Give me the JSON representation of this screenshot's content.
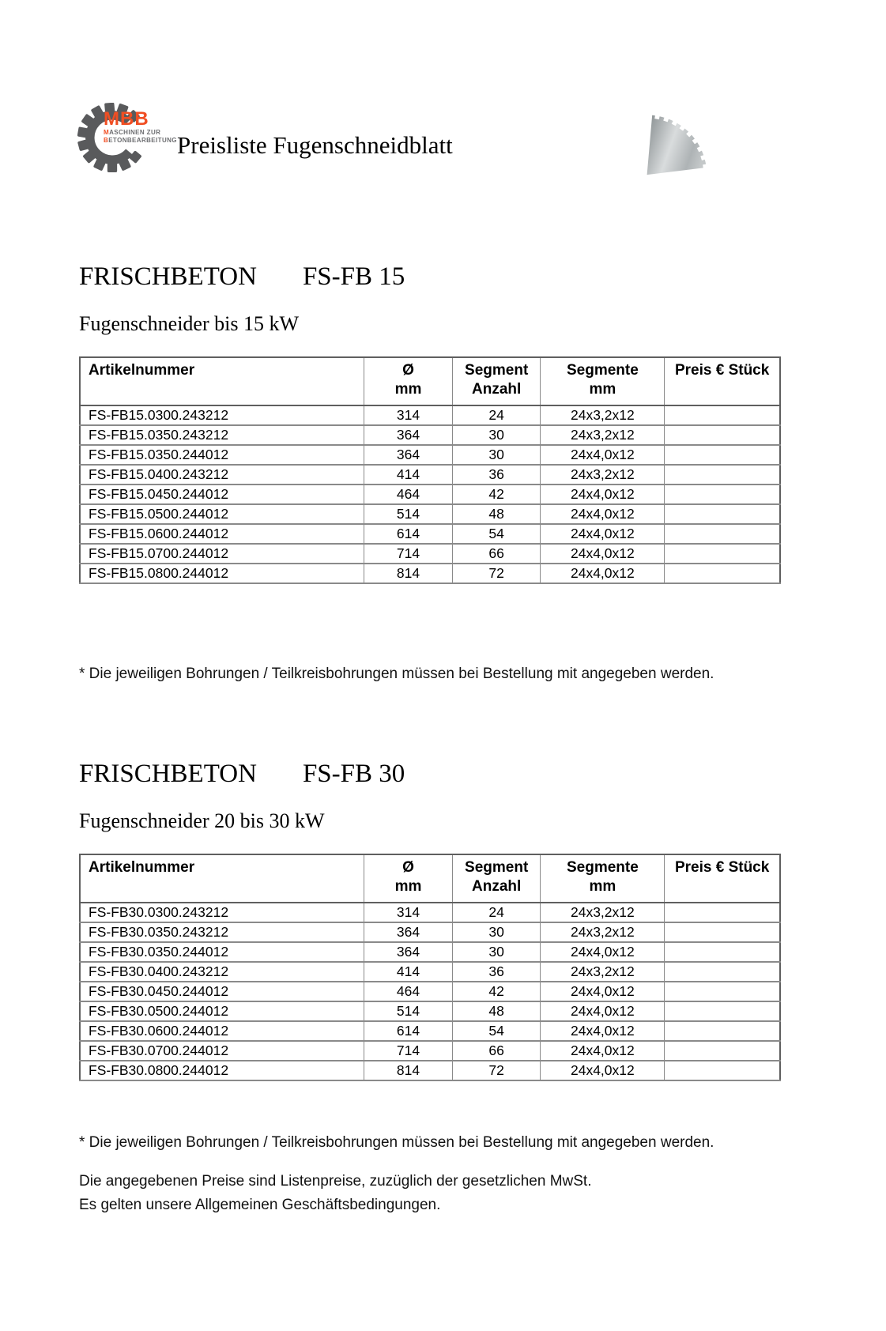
{
  "header": {
    "logo": {
      "brand": "MBB",
      "tagline_line1": "MASCHINEN ZUR",
      "tagline_line2": "BETONBEARBEITUNG"
    },
    "title": "Preisliste Fugenschneidblatt",
    "blade_image": "saw-blade-quarter-photo"
  },
  "sections": [
    {
      "heading_main": "FRISCHBETON",
      "heading_model": "FS-FB 15",
      "subheading": "Fugenschneider bis 15 kW",
      "table": {
        "headers": [
          {
            "line1": "Artikelnummer",
            "line2": ""
          },
          {
            "line1": "Ø",
            "line2": "mm"
          },
          {
            "line1": "Segment",
            "line2": "Anzahl"
          },
          {
            "line1": "Segmente",
            "line2": "mm"
          },
          {
            "line1": "Preis € Stück",
            "line2": ""
          }
        ],
        "rows": [
          [
            "FS-FB15.0300.243212",
            "314",
            "24",
            "24x3,2x12",
            ""
          ],
          [
            "FS-FB15.0350.243212",
            "364",
            "30",
            "24x3,2x12",
            ""
          ],
          [
            "FS-FB15.0350.244012",
            "364",
            "30",
            "24x4,0x12",
            ""
          ],
          [
            "FS-FB15.0400.243212",
            "414",
            "36",
            "24x3,2x12",
            ""
          ],
          [
            "FS-FB15.0450.244012",
            "464",
            "42",
            "24x4,0x12",
            ""
          ],
          [
            "FS-FB15.0500.244012",
            "514",
            "48",
            "24x4,0x12",
            ""
          ],
          [
            "FS-FB15.0600.244012",
            "614",
            "54",
            "24x4,0x12",
            ""
          ],
          [
            "FS-FB15.0700.244012",
            "714",
            "66",
            "24x4,0x12",
            ""
          ],
          [
            "FS-FB15.0800.244012",
            "814",
            "72",
            "24x4,0x12",
            ""
          ]
        ]
      },
      "footnote": "* Die jeweiligen Bohrungen / Teilkreisbohrungen müssen bei Bestellung mit angegeben werden."
    },
    {
      "heading_main": "FRISCHBETON",
      "heading_model": "FS-FB 30",
      "subheading": "Fugenschneider 20 bis 30 kW",
      "table": {
        "headers": [
          {
            "line1": "Artikelnummer",
            "line2": ""
          },
          {
            "line1": "Ø",
            "line2": "mm"
          },
          {
            "line1": "Segment",
            "line2": "Anzahl"
          },
          {
            "line1": "Segmente",
            "line2": "mm"
          },
          {
            "line1": "Preis € Stück",
            "line2": ""
          }
        ],
        "rows": [
          [
            "FS-FB30.0300.243212",
            "314",
            "24",
            "24x3,2x12",
            ""
          ],
          [
            "FS-FB30.0350.243212",
            "364",
            "30",
            "24x3,2x12",
            ""
          ],
          [
            "FS-FB30.0350.244012",
            "364",
            "30",
            "24x4,0x12",
            ""
          ],
          [
            "FS-FB30.0400.243212",
            "414",
            "36",
            "24x3,2x12",
            ""
          ],
          [
            "FS-FB30.0450.244012",
            "464",
            "42",
            "24x4,0x12",
            ""
          ],
          [
            "FS-FB30.0500.244012",
            "514",
            "48",
            "24x4,0x12",
            ""
          ],
          [
            "FS-FB30.0600.244012",
            "614",
            "54",
            "24x4,0x12",
            ""
          ],
          [
            "FS-FB30.0700.244012",
            "714",
            "66",
            "24x4,0x12",
            ""
          ],
          [
            "FS-FB30.0800.244012",
            "814",
            "72",
            "24x4,0x12",
            ""
          ]
        ]
      },
      "footnote": "* Die jeweiligen Bohrungen / Teilkreisbohrungen müssen bei Bestellung mit angegeben werden."
    }
  ],
  "footer": {
    "line1": "Die angegebenen Preise sind Listenpreise, zuzüglich der gesetzlichen MwSt.",
    "line2": "Es gelten unsere Allgemeinen Geschäftsbedingungen."
  },
  "colors": {
    "brand_orange": "#F04E23",
    "gear_gray": "#595A5C",
    "table_border": "#8a8a8a"
  }
}
